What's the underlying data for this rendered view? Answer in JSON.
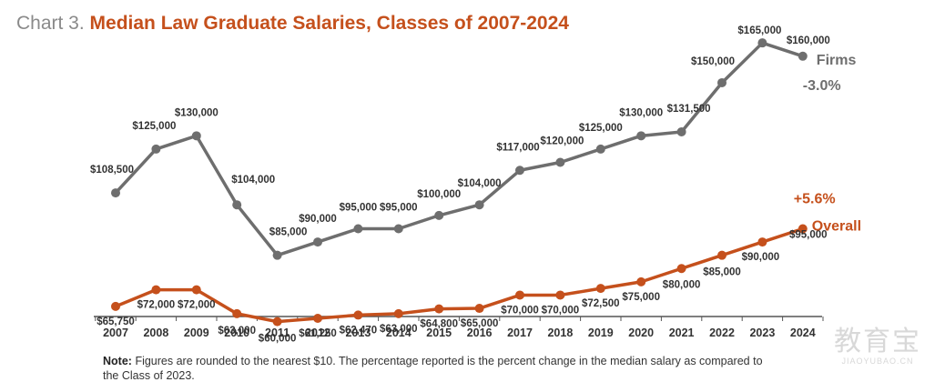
{
  "title": {
    "prefix": "Chart 3.",
    "main": "Median Law Graduate Salaries, Classes of 2007-2024"
  },
  "note": {
    "label": "Note:",
    "text": "Figures are rounded to the nearest $10. The percentage reported is the percent change in the median salary as compared to the Class of 2023."
  },
  "watermark": {
    "cn": "教育宝",
    "en": "JIAOYUBAO.CN"
  },
  "colors": {
    "firms": "#6e6e6e",
    "overall": "#c5501c",
    "axis": "#555555",
    "title_accent": "#c5501c"
  },
  "chart_data": {
    "type": "line",
    "title": "Median Law Graduate Salaries, Classes of 2007-2024",
    "x": [
      "2007",
      "2008",
      "2009",
      "2010",
      "2011",
      "2012",
      "2013",
      "2014",
      "2015",
      "2016",
      "2017",
      "2018",
      "2019",
      "2020",
      "2021",
      "2022",
      "2023",
      "2024"
    ],
    "ylim": [
      40000,
      175000
    ],
    "grid": false,
    "legend": "end-of-line labels",
    "series": [
      {
        "name": "Firms",
        "change_label": "-3.0%",
        "values": [
          108500,
          125000,
          130000,
          104000,
          85000,
          90000,
          95000,
          95000,
          100000,
          104000,
          117000,
          120000,
          125000,
          130000,
          131500,
          150000,
          165000,
          160000
        ],
        "labels": [
          "$108,500",
          "$125,000",
          "$130,000",
          "$104,000",
          "$85,000",
          "$90,000",
          "$95,000",
          "$95,000",
          "$100,000",
          "$104,000",
          "$117,000",
          "$120,000",
          "$125,000",
          "$130,000",
          "$131,500",
          "$150,000",
          "$165,000",
          "$160,000"
        ]
      },
      {
        "name": "Overall",
        "change_label": "+5.6%",
        "values": [
          65750,
          72000,
          72000,
          63000,
          60000,
          61250,
          62470,
          63000,
          64800,
          65000,
          70000,
          70000,
          72500,
          75000,
          80000,
          85000,
          90000,
          95000
        ],
        "labels": [
          "$65,750",
          "$72,000",
          "$72,000",
          "$63,000",
          "$60,000",
          "$61,250",
          "$62,470",
          "$63,000",
          "$64,800",
          "$65,000",
          "$70,000",
          "$70,000",
          "$72,500",
          "$75,000",
          "$80,000",
          "$85,000",
          "$90,000",
          "$95,000"
        ]
      }
    ]
  }
}
